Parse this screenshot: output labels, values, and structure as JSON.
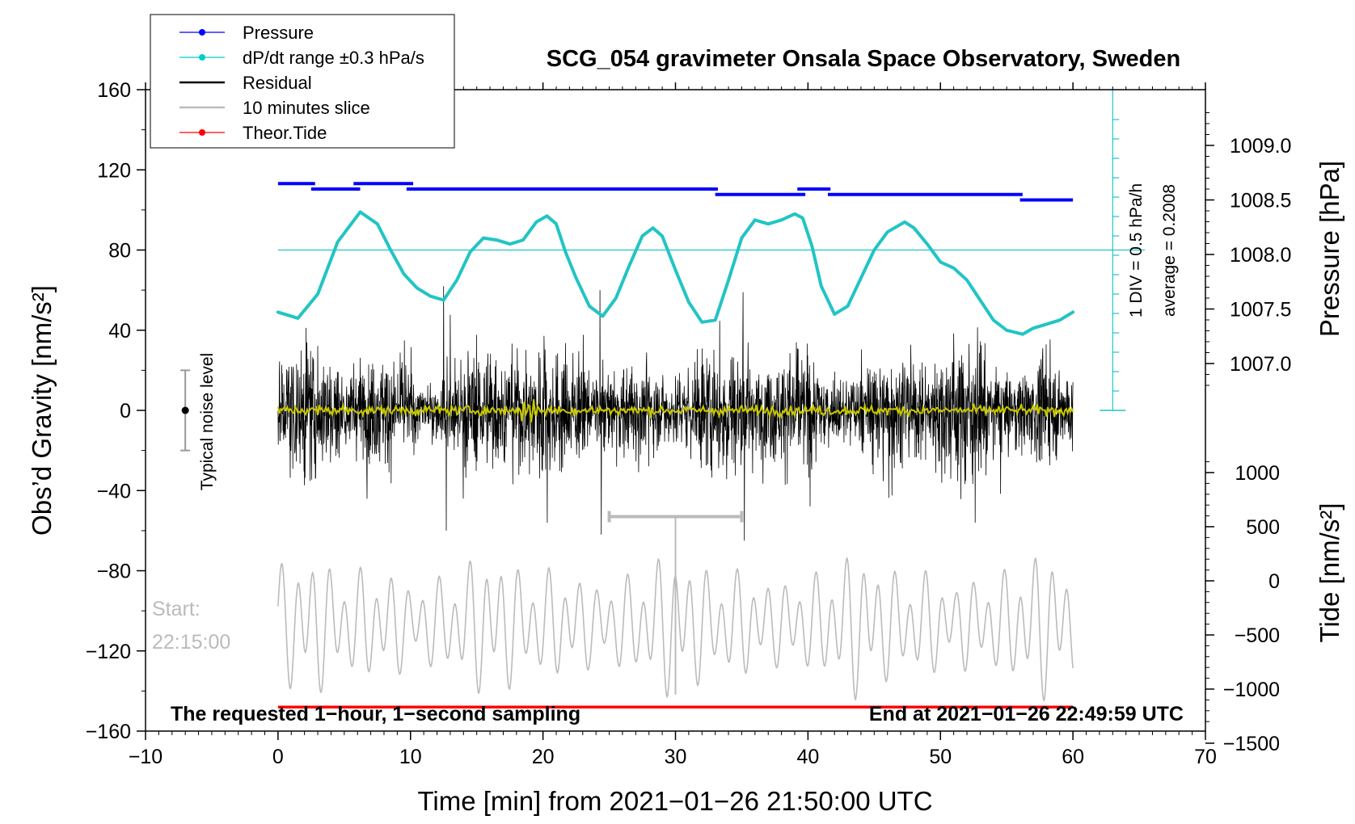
{
  "chart_data": {
    "type": "line",
    "title": "SCG_054 gravimeter Onsala Space Observatory, Sweden",
    "xlabel": "Time [min] from 2021−01−26 21:50:00 UTC",
    "ylabel_left": "Obs’d Gravity [nm/s²]",
    "ylabel_right_top": "Pressure [hPa]",
    "ylabel_right_bottom": "Tide [nm/s²]",
    "xlim": [
      -10,
      70
    ],
    "ylim": [
      -160,
      160
    ],
    "x_ticks": [
      "−10",
      "0",
      "10",
      "20",
      "30",
      "40",
      "50",
      "60",
      "70"
    ],
    "y_ticks": [
      "160",
      "120",
      "80",
      "40",
      "0",
      "−40",
      "−80",
      "−120",
      "−160"
    ],
    "pressure_ticks": [
      "1009.0",
      "1008.5",
      "1008.0",
      "1007.5",
      "1007.0"
    ],
    "tide_ticks": [
      "1000",
      "500",
      "0",
      "−500",
      "−1000",
      "−1500"
    ],
    "legend": [
      {
        "label": "Pressure",
        "color": "#0000ff"
      },
      {
        "label": "dP/dt range ±0.3 hPa/s",
        "color": "#00cccc"
      },
      {
        "label": "Residual",
        "color": "#000000"
      },
      {
        "label": "10 minutes slice",
        "color": "#bbbbbb"
      },
      {
        "label": "Theor.Tide",
        "color": "#ff0000"
      }
    ],
    "annotations": {
      "div_note": "1 DIV = 0.5 hPa/h",
      "average_note": "average = 0.2008",
      "noise_label": "Typical noise level",
      "start_label": "Start:",
      "start_time": "22:15:00",
      "bottom_left": "The requested 1−hour, 1−second sampling",
      "bottom_right": "End at 2021−01−26 22:49:59 UTC"
    },
    "series": [
      {
        "name": "Pressure",
        "color": "#0000ff",
        "unit": "hPa",
        "segments": [
          {
            "x": [
              0,
              2.8
            ],
            "p": 1008.65
          },
          {
            "x": [
              2.5,
              6.2
            ],
            "p": 1008.6
          },
          {
            "x": [
              5.7,
              10.2
            ],
            "p": 1008.65
          },
          {
            "x": [
              9.7,
              33.2
            ],
            "p": 1008.6
          },
          {
            "x": [
              33,
              39.8
            ],
            "p": 1008.55
          },
          {
            "x": [
              39.2,
              41.7
            ],
            "p": 1008.6
          },
          {
            "x": [
              41.5,
              56.2
            ],
            "p": 1008.55
          },
          {
            "x": [
              56,
              60
            ],
            "p": 1008.5
          }
        ]
      },
      {
        "name": "dP/dt",
        "color": "#22c4c4",
        "unit": "nm/s² (plot units)",
        "x": [
          0,
          1.5,
          3,
          4.5,
          6.2,
          7.5,
          8.5,
          9.5,
          10.5,
          11.5,
          12.5,
          13.5,
          14.5,
          15.5,
          16.5,
          17.5,
          18.5,
          19.5,
          20.3,
          21,
          21.7,
          22.5,
          23.5,
          24.5,
          25.5,
          26.5,
          27.5,
          28.3,
          29,
          30,
          31,
          32,
          33,
          34,
          35,
          36,
          37,
          38,
          39,
          39.6,
          40.3,
          41,
          42,
          43,
          44,
          45,
          46,
          47.3,
          48,
          49,
          50,
          51,
          52,
          53,
          54,
          55,
          56.2,
          57,
          58,
          59,
          60
        ],
        "y": [
          49,
          46,
          58,
          84,
          99,
          93,
          80,
          68,
          61,
          57,
          55,
          65,
          79,
          86,
          85,
          83,
          85,
          94,
          97,
          93,
          79,
          66,
          52,
          47,
          56,
          72,
          87,
          91,
          87,
          70,
          54,
          44,
          45,
          65,
          86,
          95,
          93,
          95,
          98,
          96,
          82,
          62,
          48,
          52,
          66,
          80,
          89,
          94,
          91,
          83,
          74,
          71,
          65,
          55,
          45,
          40,
          38,
          41,
          43,
          45,
          49
        ]
      },
      {
        "name": "Residual",
        "color": "#000000",
        "x_range": [
          0,
          60
        ],
        "typical_amplitude": 20,
        "extremes": [
          {
            "x": 12.5,
            "y": 62
          },
          {
            "x": 12.7,
            "y": -60
          },
          {
            "x": 24.3,
            "y": 60
          },
          {
            "x": 24.4,
            "y": -62
          },
          {
            "x": 35.1,
            "y": 59
          },
          {
            "x": 35.2,
            "y": -65
          }
        ]
      },
      {
        "name": "Smoothed residual",
        "color": "#c8c800",
        "x_range": [
          0,
          60
        ],
        "typical_amplitude": 2,
        "burst": {
          "x": 19,
          "amplitude": 5
        }
      },
      {
        "name": "10 minutes slice",
        "color": "#bbbbbb",
        "unit": "nm/s² (tide axis)",
        "x_range": [
          0,
          60
        ],
        "slice_x": [
          25,
          35
        ],
        "slice_y": -53,
        "tide_center": -400,
        "tide_amplitude": 650
      },
      {
        "name": "Theor.Tide",
        "color": "#ff0000",
        "x": [
          0,
          60
        ],
        "y": [
          -148,
          -148
        ]
      }
    ],
    "noise_level": {
      "x": -7,
      "center": 0,
      "low": -20,
      "high": 20
    },
    "pressure_marker_x": 63,
    "reference_line_y": 80
  }
}
